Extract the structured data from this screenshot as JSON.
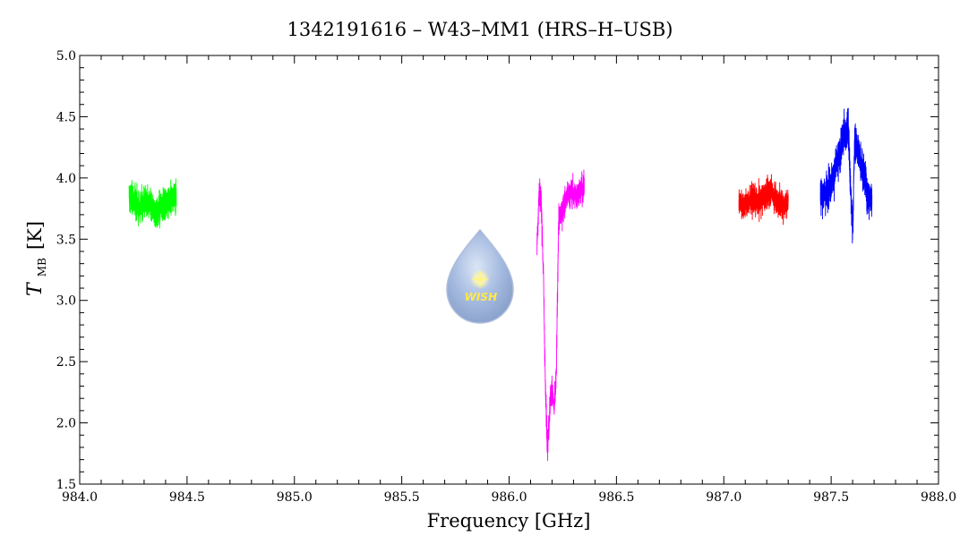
{
  "chart_data": {
    "type": "line",
    "title": "1342191616 – W43–MM1 (HRS–H–USB)",
    "xlabel": "Frequency [GHz]",
    "ylabel": {
      "main": "T",
      "sub": "MB",
      "unit": "[K]"
    },
    "xlim": [
      984.0,
      988.0
    ],
    "ylim": [
      1.5,
      5.0
    ],
    "x_ticks": [
      "984.0",
      "984.5",
      "985.0",
      "985.5",
      "986.0",
      "986.5",
      "987.0",
      "987.5",
      "988.0"
    ],
    "y_ticks": [
      "1.5",
      "2.0",
      "2.5",
      "3.0",
      "3.5",
      "4.0",
      "4.5",
      "5.0"
    ],
    "grid": false,
    "logo": {
      "text": "WISH"
    },
    "series": [
      {
        "color": "#00ff00",
        "x": [
          984.23,
          984.26,
          984.28,
          984.3,
          984.32,
          984.34,
          984.36,
          984.38,
          984.4,
          984.42,
          984.45
        ],
        "y": [
          3.85,
          3.8,
          3.75,
          3.8,
          3.78,
          3.75,
          3.7,
          3.78,
          3.8,
          3.82,
          3.85
        ]
      },
      {
        "color": "#ff00ff",
        "x": [
          986.13,
          986.14,
          986.15,
          986.16,
          986.17,
          986.18,
          986.19,
          986.2,
          986.21,
          986.22,
          986.23,
          986.24,
          986.25,
          986.27,
          986.29,
          986.31,
          986.33,
          986.35
        ],
        "y": [
          3.45,
          3.9,
          3.8,
          3.2,
          2.2,
          1.8,
          2.15,
          2.3,
          2.1,
          2.4,
          3.6,
          3.7,
          3.75,
          3.85,
          3.88,
          3.85,
          3.9,
          3.92
        ]
      },
      {
        "color": "#ff0000",
        "x": [
          987.07,
          987.1,
          987.13,
          987.16,
          987.19,
          987.22,
          987.25,
          987.28,
          987.3
        ],
        "y": [
          3.8,
          3.78,
          3.82,
          3.8,
          3.85,
          3.9,
          3.8,
          3.78,
          3.82
        ]
      },
      {
        "color": "#0000ff",
        "x": [
          987.45,
          987.48,
          987.51,
          987.54,
          987.56,
          987.58,
          987.59,
          987.6,
          987.61,
          987.63,
          987.65,
          987.67,
          987.69
        ],
        "y": [
          3.85,
          3.9,
          4.0,
          4.2,
          4.35,
          4.4,
          3.9,
          3.6,
          4.3,
          4.2,
          4.05,
          3.85,
          3.8
        ]
      }
    ]
  }
}
